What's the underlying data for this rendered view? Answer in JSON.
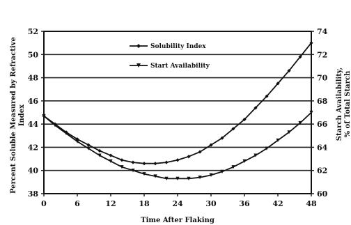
{
  "chart_data": {
    "type": "line",
    "xlabel": "Time After Flaking",
    "ylabel": "Percent Soluble Measured by Refractive Index",
    "ylabel_lines": [
      "Percent Soluble Measured by Refractive",
      "Index"
    ],
    "y2label": "Starch Availability, % of Total Starch",
    "y2label_lines": [
      "Starch Availability,",
      "% of Total Starch"
    ],
    "xlim": [
      0,
      48
    ],
    "ylim": [
      38,
      52
    ],
    "y2lim": [
      60,
      74
    ],
    "xticks": [
      "0",
      "6",
      "12",
      "18",
      "24",
      "30",
      "36",
      "42",
      "48"
    ],
    "yticks": [
      "38",
      "40",
      "42",
      "44",
      "46",
      "48",
      "50",
      "52"
    ],
    "y2ticks": [
      "60",
      "62",
      "64",
      "66",
      "68",
      "70",
      "72",
      "74"
    ],
    "grid": "horizontal",
    "legend_position": "top-center",
    "series": [
      {
        "name": "Solubility Index",
        "axis": "left",
        "marker": "diamond",
        "x": [
          0,
          2,
          4,
          6,
          8,
          10,
          12,
          14,
          16,
          18,
          20,
          22,
          24,
          26,
          28,
          30,
          32,
          34,
          36,
          38,
          40,
          42,
          44,
          46,
          48
        ],
        "values": [
          44.7,
          44.0,
          43.3,
          42.7,
          42.2,
          41.7,
          41.3,
          40.9,
          40.7,
          40.6,
          40.6,
          40.7,
          40.9,
          41.2,
          41.6,
          42.2,
          42.8,
          43.6,
          44.4,
          45.4,
          46.4,
          47.5,
          48.6,
          49.8,
          51.0
        ]
      },
      {
        "name": "Start Availability",
        "axis": "right",
        "marker": "triangle",
        "x": [
          0,
          2,
          4,
          6,
          8,
          10,
          12,
          14,
          16,
          18,
          20,
          22,
          24,
          26,
          28,
          30,
          32,
          34,
          36,
          38,
          40,
          42,
          44,
          46,
          48
        ],
        "values": [
          66.7,
          65.9,
          65.2,
          64.5,
          63.9,
          63.3,
          62.8,
          62.3,
          62.0,
          61.7,
          61.5,
          61.3,
          61.3,
          61.3,
          61.4,
          61.6,
          61.9,
          62.3,
          62.8,
          63.3,
          63.9,
          64.6,
          65.3,
          66.1,
          67.0
        ]
      }
    ]
  },
  "colors": {
    "background": "#ffffff",
    "plot_border": "#111111",
    "grid": "#222222",
    "line": "#111111"
  }
}
